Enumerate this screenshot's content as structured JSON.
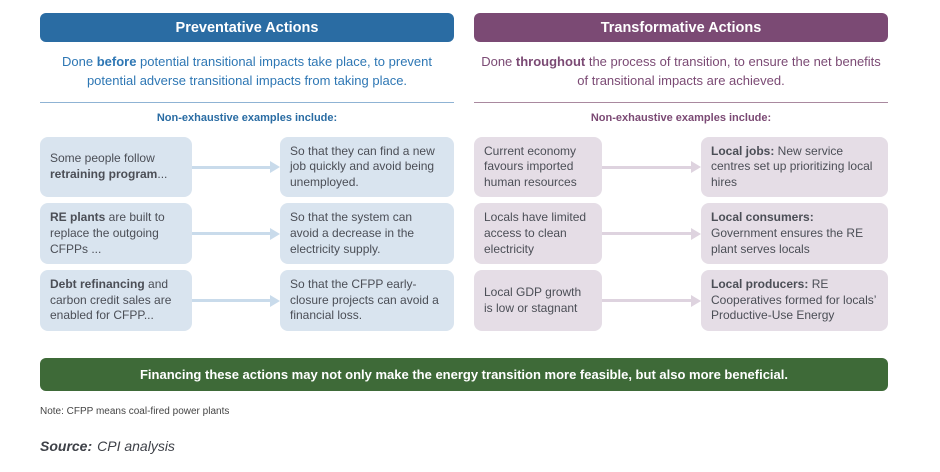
{
  "preventative": {
    "title": "Preventative Actions",
    "description": [
      {
        "t": "Done ",
        "b": false
      },
      {
        "t": "before",
        "b": true
      },
      {
        "t": " potential transitional impacts take place, to prevent potential adverse transitional impacts from taking place.",
        "b": false
      }
    ],
    "examples_label": "Non-exhaustive examples include:",
    "rows": [
      {
        "cause": [
          {
            "t": "Some people follow ",
            "b": false
          },
          {
            "t": "retraining program",
            "b": true
          },
          {
            "t": "...",
            "b": false
          }
        ],
        "effect": [
          {
            "t": "So that they can find a new job quickly and avoid being unemployed.",
            "b": false
          }
        ]
      },
      {
        "cause": [
          {
            "t": "RE plants",
            "b": true
          },
          {
            "t": " are built to replace the outgoing CFPPs ...",
            "b": false
          }
        ],
        "effect": [
          {
            "t": "So that the system can avoid a decrease in the electricity supply.",
            "b": false
          }
        ]
      },
      {
        "cause": [
          {
            "t": "Debt refinancing",
            "b": true
          },
          {
            "t": " and carbon credit sales are enabled for CFPP...",
            "b": false
          }
        ],
        "effect": [
          {
            "t": "So that the CFPP early-closure projects can avoid a financial loss.",
            "b": false
          }
        ]
      }
    ]
  },
  "transformative": {
    "title": "Transformative Actions",
    "description": [
      {
        "t": "Done ",
        "b": false
      },
      {
        "t": "throughout",
        "b": true
      },
      {
        "t": " the process of transition, to ensure the net benefits of transitional impacts are achieved.",
        "b": false
      }
    ],
    "examples_label": "Non-exhaustive examples include:",
    "rows": [
      {
        "cause": [
          {
            "t": "Current economy favours imported human resources",
            "b": false
          }
        ],
        "effect": [
          {
            "t": "Local jobs:",
            "b": true
          },
          {
            "t": " New service centres set up prioritizing local hires",
            "b": false
          }
        ]
      },
      {
        "cause": [
          {
            "t": "Locals have limited access to clean electricity",
            "b": false
          }
        ],
        "effect": [
          {
            "t": "Local consumers:",
            "b": true
          },
          {
            "t": " Government ensures the RE plant serves locals",
            "b": false
          }
        ]
      },
      {
        "cause": [
          {
            "t": "Local GDP growth is low or stagnant",
            "b": false
          }
        ],
        "effect": [
          {
            "t": "Local producers:",
            "b": true
          },
          {
            "t": " RE Cooperatives formed for locals’ Productive-Use Energy",
            "b": false
          }
        ]
      }
    ]
  },
  "banner": {
    "text": "Financing these actions may not only make the energy transition more feasible, but also more beneficial."
  },
  "note": {
    "text": "Note: CFPP means coal-fired power plants"
  },
  "source": {
    "label": "Source:",
    "text": "CPI analysis"
  },
  "colors": {
    "preventative_accent": "#2a6ca3",
    "preventative_text": "#2e77b4",
    "preventative_line": "#8fb3d4",
    "preventative_box": "#d9e4ef",
    "preventative_arrow": "#c9dbeb",
    "transformative_accent": "#7b4a74",
    "transformative_text": "#7b4a74",
    "transformative_line": "#a9899f",
    "transformative_box": "#e5dde6",
    "transformative_arrow": "#ded3df",
    "banner_green": "#3e6a38",
    "box_text": "#4b4e56"
  }
}
